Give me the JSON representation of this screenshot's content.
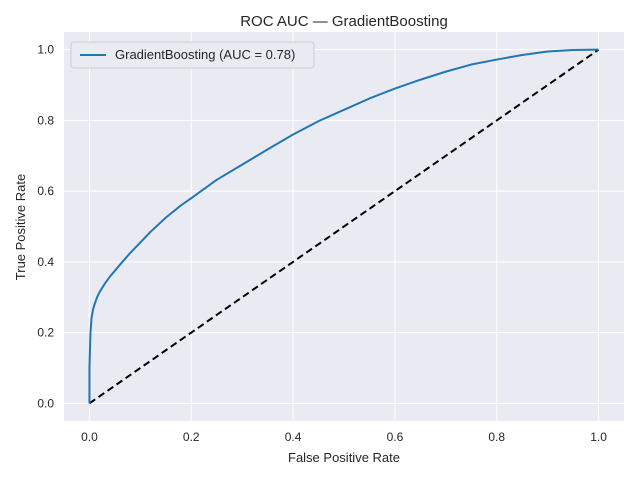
{
  "chart_data": {
    "type": "line",
    "title": "ROC AUC — GradientBoosting",
    "xlabel": "False Positive Rate",
    "ylabel": "True Positive Rate",
    "xlim": [
      -0.05,
      1.05
    ],
    "ylim": [
      -0.05,
      1.05
    ],
    "xticks": [
      "0.0",
      "0.2",
      "0.4",
      "0.6",
      "0.8",
      "1.0"
    ],
    "yticks": [
      "0.0",
      "0.2",
      "0.4",
      "0.6",
      "0.8",
      "1.0"
    ],
    "grid": true,
    "legend_position": "upper-left",
    "series": [
      {
        "name": "GradientBoosting (AUC = 0.78)",
        "color": "#1f77b4",
        "style": "solid",
        "x": [
          0.0,
          0.0,
          0.002,
          0.004,
          0.007,
          0.01,
          0.015,
          0.02,
          0.03,
          0.04,
          0.05,
          0.06,
          0.08,
          0.1,
          0.12,
          0.15,
          0.18,
          0.2,
          0.25,
          0.3,
          0.35,
          0.4,
          0.45,
          0.5,
          0.55,
          0.6,
          0.65,
          0.7,
          0.75,
          0.8,
          0.85,
          0.9,
          0.95,
          1.0
        ],
        "y": [
          0.0,
          0.1,
          0.2,
          0.24,
          0.265,
          0.28,
          0.3,
          0.315,
          0.338,
          0.358,
          0.375,
          0.392,
          0.425,
          0.455,
          0.485,
          0.525,
          0.56,
          0.58,
          0.632,
          0.675,
          0.718,
          0.76,
          0.798,
          0.83,
          0.862,
          0.89,
          0.915,
          0.938,
          0.958,
          0.972,
          0.985,
          0.995,
          0.999,
          1.0
        ]
      },
      {
        "name": "",
        "color": "#000000",
        "style": "dashed",
        "x": [
          0,
          1
        ],
        "y": [
          0,
          1
        ]
      }
    ]
  }
}
